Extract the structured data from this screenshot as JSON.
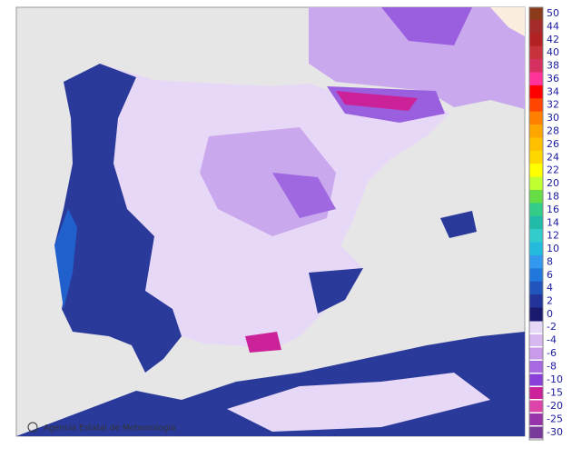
{
  "credit": "Agencia Estatal de Meteorología",
  "legend": {
    "items": [
      {
        "label": 50,
        "color": "#8b3a1a"
      },
      {
        "label": 44,
        "color": "#a52a2a"
      },
      {
        "label": 42,
        "color": "#b22222"
      },
      {
        "label": 40,
        "color": "#c8323c"
      },
      {
        "label": 38,
        "color": "#d63060"
      },
      {
        "label": 36,
        "color": "#ff3399"
      },
      {
        "label": 34,
        "color": "#ff0000"
      },
      {
        "label": 32,
        "color": "#ff4500"
      },
      {
        "label": 30,
        "color": "#ff7f00"
      },
      {
        "label": 28,
        "color": "#ffa500"
      },
      {
        "label": 26,
        "color": "#ffc000"
      },
      {
        "label": 24,
        "color": "#ffd700"
      },
      {
        "label": 22,
        "color": "#ffff00"
      },
      {
        "label": 20,
        "color": "#c0ff30"
      },
      {
        "label": 18,
        "color": "#66dd44"
      },
      {
        "label": 16,
        "color": "#33cc88"
      },
      {
        "label": 14,
        "color": "#22bbaa"
      },
      {
        "label": 12,
        "color": "#33cccc"
      },
      {
        "label": 10,
        "color": "#22bbdd"
      },
      {
        "label": 8,
        "color": "#3399ee"
      },
      {
        "label": 6,
        "color": "#2277dd"
      },
      {
        "label": 4,
        "color": "#2255bb"
      },
      {
        "label": 2,
        "color": "#223399"
      },
      {
        "label": 0,
        "color": "#1a1a6e"
      },
      {
        "label": -2,
        "color": "#e8d8f8"
      },
      {
        "label": -4,
        "color": "#d8b8f0"
      },
      {
        "label": -6,
        "color": "#c89ae8"
      },
      {
        "label": -8,
        "color": "#a868e0"
      },
      {
        "label": -10,
        "color": "#8a3fd8"
      },
      {
        "label": -15,
        "color": "#cc2299"
      },
      {
        "label": -20,
        "color": "#dd44aa"
      },
      {
        "label": -25,
        "color": "#9933aa"
      },
      {
        "label": -30,
        "color": "#7a3a9a"
      }
    ]
  }
}
